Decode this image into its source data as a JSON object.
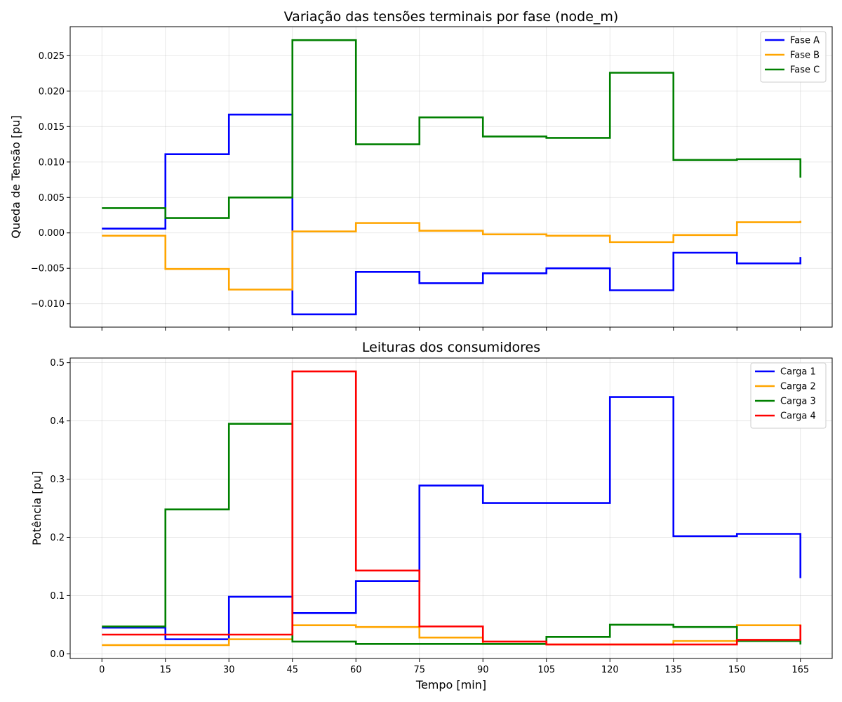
{
  "chart_data": [
    {
      "type": "line",
      "step": "post",
      "title": "Variação das tensões terminais por fase (node_m)",
      "xlabel": "",
      "ylabel": "Queda de Tensão [pu]",
      "x": [
        0,
        15,
        30,
        45,
        60,
        75,
        90,
        105,
        120,
        135,
        150,
        165
      ],
      "xlim": [
        -7.5,
        172.5
      ],
      "ylim": [
        -0.0133,
        0.0291
      ],
      "xticks": [
        0,
        15,
        30,
        45,
        60,
        75,
        90,
        105,
        120,
        135,
        150,
        165
      ],
      "xtick_labels_visible": false,
      "yticks": [
        -0.01,
        -0.005,
        0.0,
        0.005,
        0.01,
        0.015,
        0.02,
        0.025
      ],
      "ytick_labels": [
        "−0.010",
        "−0.005",
        "0.000",
        "0.005",
        "0.010",
        "0.015",
        "0.020",
        "0.025"
      ],
      "grid": true,
      "legend": "top-right",
      "series": [
        {
          "name": "Fase A",
          "color": "#0000ff",
          "values": [
            0.0006,
            0.0111,
            0.0167,
            -0.0115,
            -0.0055,
            -0.0071,
            -0.0057,
            -0.005,
            -0.0081,
            -0.0028,
            -0.0043,
            -0.0034
          ]
        },
        {
          "name": "Fase B",
          "color": "#ffa500",
          "values": [
            -0.0004,
            -0.0051,
            -0.008,
            0.0002,
            0.0014,
            0.0003,
            -0.0002,
            -0.0004,
            -0.0013,
            -0.0003,
            0.0015,
            0.0017
          ]
        },
        {
          "name": "Fase C",
          "color": "#008000",
          "values": [
            0.0035,
            0.0021,
            0.005,
            0.0272,
            0.0125,
            0.0163,
            0.0136,
            0.0134,
            0.0226,
            0.0103,
            0.0104,
            0.0078
          ]
        }
      ]
    },
    {
      "type": "line",
      "step": "post",
      "title": "Leituras dos consumidores",
      "xlabel": "Tempo [min]",
      "ylabel": "Potência [pu]",
      "x": [
        0,
        15,
        30,
        45,
        60,
        75,
        90,
        105,
        120,
        135,
        150,
        165
      ],
      "xlim": [
        -7.5,
        172.5
      ],
      "ylim": [
        -0.008,
        0.508
      ],
      "xticks": [
        0,
        15,
        30,
        45,
        60,
        75,
        90,
        105,
        120,
        135,
        150,
        165
      ],
      "xtick_labels": [
        "0",
        "15",
        "30",
        "45",
        "60",
        "75",
        "90",
        "105",
        "120",
        "135",
        "150",
        "165"
      ],
      "xtick_labels_visible": true,
      "yticks": [
        0.0,
        0.1,
        0.2,
        0.3,
        0.4,
        0.5
      ],
      "ytick_labels": [
        "0.0",
        "0.1",
        "0.2",
        "0.3",
        "0.4",
        "0.5"
      ],
      "grid": true,
      "legend": "top-right",
      "series": [
        {
          "name": "Carga 1",
          "color": "#0000ff",
          "values": [
            0.045,
            0.025,
            0.098,
            0.07,
            0.125,
            0.289,
            0.259,
            0.259,
            0.441,
            0.202,
            0.206,
            0.13
          ]
        },
        {
          "name": "Carga 2",
          "color": "#ffa500",
          "values": [
            0.015,
            0.015,
            0.025,
            0.049,
            0.046,
            0.028,
            0.017,
            0.016,
            0.016,
            0.022,
            0.049,
            0.046
          ]
        },
        {
          "name": "Carga 3",
          "color": "#008000",
          "values": [
            0.047,
            0.248,
            0.395,
            0.021,
            0.017,
            0.017,
            0.017,
            0.029,
            0.05,
            0.046,
            0.022,
            0.016
          ]
        },
        {
          "name": "Carga 4",
          "color": "#ff0000",
          "values": [
            0.033,
            0.033,
            0.033,
            0.485,
            0.143,
            0.047,
            0.021,
            0.016,
            0.016,
            0.016,
            0.024,
            0.05
          ]
        }
      ]
    }
  ]
}
